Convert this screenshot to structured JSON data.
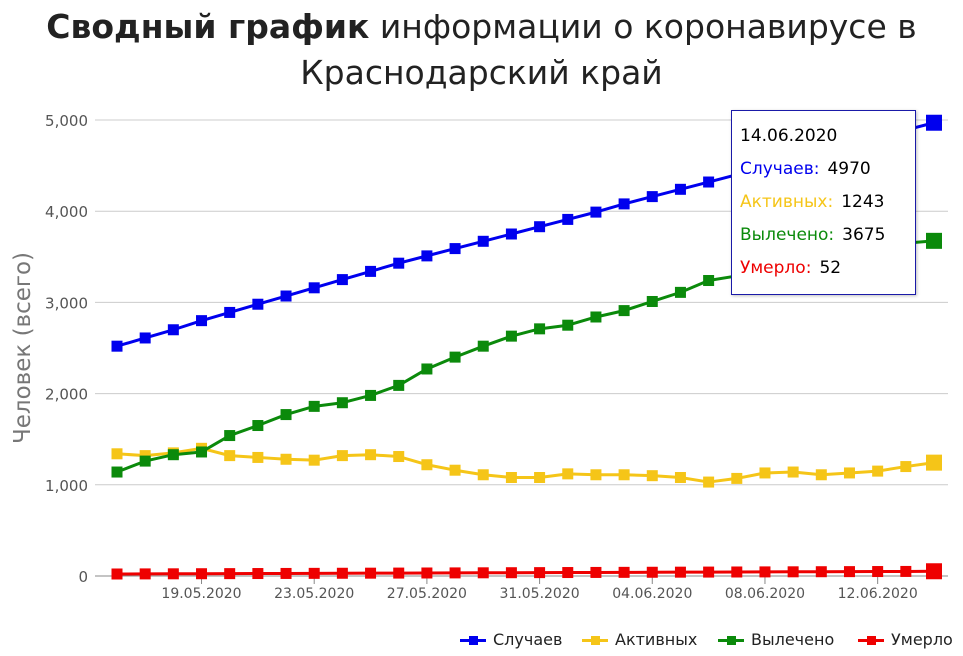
{
  "title_bold": "Сводный график",
  "title_rest_line1": "информации о коронавирусе в",
  "title_line2": "Краснодарский край",
  "tooltip": {
    "date": "14.06.2020",
    "rows": [
      {
        "label": "Случаев:",
        "value": "4970",
        "color": "#0000ee"
      },
      {
        "label": "Активных:",
        "value": "1243",
        "color": "#f5c518"
      },
      {
        "label": "Вылечено:",
        "value": "3675",
        "color": "#0b8a0b"
      },
      {
        "label": "Умерло:",
        "value": "52",
        "color": "#ee0000"
      }
    ]
  },
  "legend": [
    "Случаев",
    "Активных",
    "Вылечено",
    "Умерло"
  ],
  "chart_data": {
    "type": "line",
    "title": "Сводный график информации о коронавирусе в Краснодарский край",
    "ylabel": "Человек (всего)",
    "xlabel": "",
    "ylim": [
      0,
      5000
    ],
    "yticks": [
      0,
      1000,
      2000,
      3000,
      4000,
      5000
    ],
    "ytick_labels": [
      "0",
      "1,000",
      "2,000",
      "3,000",
      "4,000",
      "5,000"
    ],
    "xtick_labels": [
      "19.05.2020",
      "23.05.2020",
      "27.05.2020",
      "31.05.2020",
      "04.06.2020",
      "08.06.2020",
      "12.06.2020"
    ],
    "xtick_index": [
      3,
      7,
      11,
      15,
      19,
      23,
      27
    ],
    "categories": [
      "16.05.2020",
      "17.05.2020",
      "18.05.2020",
      "19.05.2020",
      "20.05.2020",
      "21.05.2020",
      "22.05.2020",
      "23.05.2020",
      "24.05.2020",
      "25.05.2020",
      "26.05.2020",
      "27.05.2020",
      "28.05.2020",
      "29.05.2020",
      "30.05.2020",
      "31.05.2020",
      "01.06.2020",
      "02.06.2020",
      "03.06.2020",
      "04.06.2020",
      "05.06.2020",
      "06.06.2020",
      "07.06.2020",
      "08.06.2020",
      "09.06.2020",
      "10.06.2020",
      "11.06.2020",
      "12.06.2020",
      "13.06.2020",
      "14.06.2020"
    ],
    "grid": true,
    "legend_position": "bottom-right",
    "series": [
      {
        "name": "Случаев",
        "color": "#0000ee",
        "values": [
          2520,
          2610,
          2700,
          2800,
          2890,
          2980,
          3070,
          3160,
          3250,
          3340,
          3430,
          3510,
          3590,
          3670,
          3750,
          3830,
          3910,
          3990,
          4080,
          4160,
          4240,
          4320,
          4400,
          4480,
          4560,
          4650,
          4740,
          4820,
          4890,
          4970
        ]
      },
      {
        "name": "Активных",
        "color": "#f5c518",
        "values": [
          1340,
          1320,
          1350,
          1400,
          1320,
          1300,
          1280,
          1270,
          1320,
          1330,
          1310,
          1220,
          1160,
          1110,
          1080,
          1080,
          1120,
          1110,
          1110,
          1100,
          1080,
          1030,
          1070,
          1130,
          1140,
          1110,
          1130,
          1150,
          1200,
          1243
        ]
      },
      {
        "name": "Вылечено",
        "color": "#0b8a0b",
        "values": [
          1140,
          1260,
          1330,
          1360,
          1540,
          1650,
          1770,
          1860,
          1900,
          1980,
          2090,
          2270,
          2400,
          2520,
          2630,
          2710,
          2750,
          2840,
          2910,
          3010,
          3110,
          3240,
          3290,
          3380,
          3450,
          3520,
          3580,
          3620,
          3650,
          3675
        ]
      },
      {
        "name": "Умерло",
        "color": "#ee0000",
        "values": [
          22,
          23,
          24,
          25,
          26,
          27,
          28,
          29,
          30,
          31,
          32,
          33,
          34,
          35,
          36,
          37,
          38,
          39,
          40,
          41,
          42,
          43,
          44,
          45,
          46,
          47,
          48,
          49,
          50,
          52
        ]
      }
    ]
  }
}
